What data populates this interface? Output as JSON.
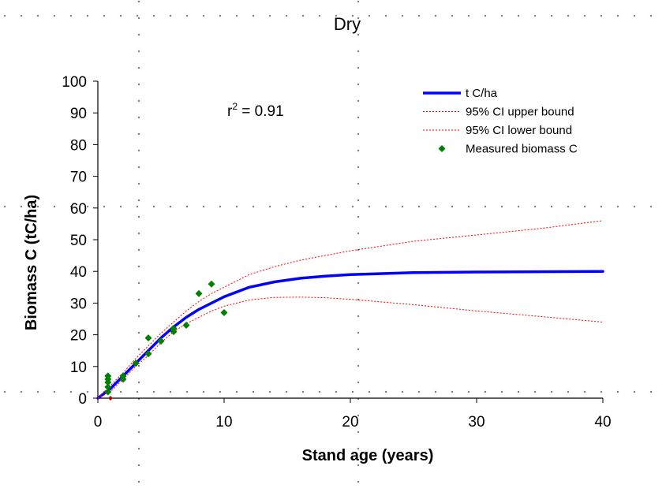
{
  "chart_data": {
    "type": "line",
    "title": "Dry",
    "xlabel": "Stand age (years)",
    "ylabel": "Biomass C (tC/ha)",
    "xlim": [
      0,
      40
    ],
    "ylim": [
      0,
      100
    ],
    "xticks": [
      "0",
      "10",
      "20",
      "30",
      "40"
    ],
    "yticks": [
      "0",
      "10",
      "20",
      "30",
      "40",
      "50",
      "60",
      "70",
      "80",
      "90",
      "100"
    ],
    "grid": false,
    "legend_position": "top-right",
    "annotation": {
      "prefix": "r",
      "superscript": "2",
      "text": " = 0.91"
    },
    "series": [
      {
        "name": "t C/ha",
        "kind": "line",
        "color": "#0000ff",
        "x": [
          0,
          1,
          2,
          3,
          4,
          5,
          6,
          7,
          8,
          9,
          10,
          12,
          14,
          16,
          18,
          20,
          25,
          30,
          35,
          40
        ],
        "y": [
          0,
          3,
          7,
          11,
          15,
          19,
          22.5,
          25.5,
          28,
          30,
          32,
          35,
          36.7,
          37.8,
          38.5,
          39,
          39.6,
          39.8,
          39.9,
          40
        ]
      },
      {
        "name": "95% CI upper bound",
        "kind": "dashed",
        "color": "#ff0000",
        "x": [
          0,
          1,
          2,
          3,
          4,
          5,
          6,
          7,
          8,
          9,
          10,
          12,
          14,
          16,
          18,
          20,
          25,
          30,
          35,
          40
        ],
        "y": [
          0,
          4,
          8,
          12.5,
          16.5,
          20.5,
          24,
          27.5,
          30.5,
          33,
          35,
          39,
          41.5,
          43.5,
          45,
          46.5,
          49.5,
          51.5,
          53.5,
          56
        ]
      },
      {
        "name": "95% CI lower bound",
        "kind": "dashed",
        "color": "#ff0000",
        "x": [
          0,
          1,
          2,
          3,
          4,
          5,
          6,
          7,
          8,
          9,
          10,
          12,
          14,
          16,
          18,
          20,
          25,
          30,
          35,
          40
        ],
        "y": [
          0,
          2,
          6,
          10,
          13.5,
          17.5,
          21,
          23.5,
          25.5,
          27.5,
          29,
          31,
          31.8,
          31.9,
          31.7,
          31.2,
          29.5,
          27.5,
          25.8,
          24
        ]
      },
      {
        "name": "Measured biomass C",
        "kind": "scatter",
        "color": "#008000",
        "x": [
          0.8,
          0.8,
          0.8,
          0.8,
          0.8,
          2,
          2,
          3,
          4,
          4,
          5,
          6,
          6,
          7,
          8,
          9,
          10
        ],
        "y": [
          2,
          3.5,
          5,
          6,
          7,
          6,
          7,
          11,
          14,
          19,
          18,
          21,
          22,
          23,
          33,
          36,
          27
        ]
      }
    ]
  }
}
